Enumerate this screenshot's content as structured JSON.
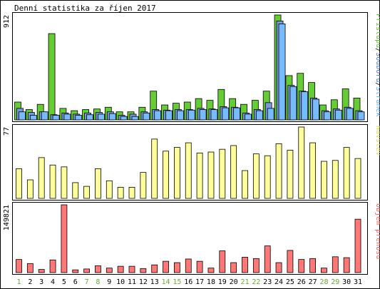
{
  "chart_data": {
    "type": "bar",
    "title": "Denní statistika za říjen 2017",
    "categories": [
      "1",
      "2",
      "3",
      "4",
      "5",
      "6",
      "7",
      "8",
      "9",
      "10",
      "11",
      "12",
      "13",
      "14",
      "15",
      "16",
      "17",
      "18",
      "19",
      "20",
      "21",
      "22",
      "23",
      "24",
      "25",
      "26",
      "27",
      "28",
      "29",
      "30",
      "31"
    ],
    "weekend_days": [
      "1",
      "7",
      "8",
      "14",
      "15",
      "21",
      "22",
      "28",
      "29"
    ],
    "legend_placement": "right",
    "panels": [
      {
        "id": "hits",
        "ymax_label": "912",
        "ylim": [
          0,
          912
        ],
        "legend": [
          {
            "text": "Přístupů",
            "color": "#66bb33"
          },
          {
            "text": "Souborů",
            "color": "#5577cc"
          },
          {
            "text": "Stránek",
            "color": "#66aaee"
          }
        ],
        "series": [
          {
            "name": "Přístupů",
            "color": "#66cc33",
            "values": [
              155,
              90,
              135,
              750,
              100,
              80,
              90,
              95,
              110,
              70,
              70,
              110,
              250,
              130,
              145,
              155,
              185,
              170,
              265,
              185,
              135,
              170,
              250,
              912,
              385,
              405,
              325,
              130,
              175,
              270,
              190
            ]
          },
          {
            "name": "Souborů",
            "color": "#7799dd",
            "values": [
              100,
              65,
              70,
              45,
              60,
              50,
              60,
              65,
              70,
              40,
              50,
              70,
              90,
              85,
              90,
              90,
              100,
              95,
              115,
              110,
              60,
              90,
              150,
              860,
              300,
              250,
              190,
              80,
              95,
              110,
              80
            ]
          },
          {
            "name": "Stránek",
            "color": "#77bbff",
            "values": [
              70,
              40,
              70,
              40,
              50,
              40,
              45,
              50,
              55,
              30,
              30,
              60,
              80,
              80,
              80,
              85,
              90,
              90,
              105,
              105,
              50,
              80,
              100,
              835,
              290,
              245,
              180,
              70,
              85,
              100,
              70
            ]
          }
        ]
      },
      {
        "id": "visits",
        "ymax_label": "77",
        "ylim": [
          0,
          77
        ],
        "legend": [
          {
            "text": "Návštěv",
            "color": "#dddd55"
          }
        ],
        "series": [
          {
            "name": "Návštěv",
            "color": "#ffff99",
            "values": [
              32,
              20,
              44,
              36,
              34,
              17,
              13,
              32,
              19,
              12,
              12,
              28,
              64,
              51,
              55,
              60,
              49,
              50,
              53,
              57,
              30,
              48,
              46,
              59,
              52,
              77,
              60,
              40,
              41,
              55,
              43
            ]
          }
        ]
      },
      {
        "id": "traffic",
        "ymax_label": "149821",
        "ylim": [
          0,
          149821
        ],
        "legend": [
          {
            "text": "Objem přenosu",
            "color": "#ee6666"
          }
        ],
        "series": [
          {
            "name": "Objem přenosu",
            "color": "#ff7777",
            "values": [
              29000,
              20000,
              7000,
              28000,
              149821,
              6000,
              8000,
              15000,
              10000,
              14000,
              14000,
              9000,
              17000,
              25000,
              22000,
              30000,
              25000,
              10000,
              48000,
              22000,
              34000,
              31000,
              59000,
              22000,
              49000,
              29000,
              31000,
              10000,
              35000,
              33000,
              118000
            ]
          }
        ]
      }
    ]
  }
}
